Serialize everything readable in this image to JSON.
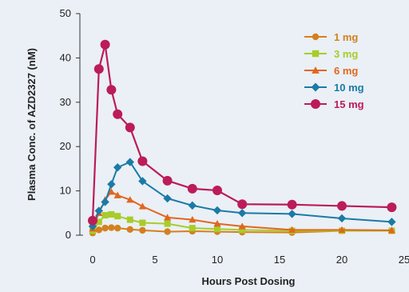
{
  "chart_data": {
    "type": "line",
    "title": "",
    "xlabel": "Hours Post Dosing",
    "ylabel": "Plasma Conc. of AZD2327 (nM)",
    "xlim": [
      0,
      25
    ],
    "ylim": [
      0,
      50
    ],
    "xticks": [
      0,
      5,
      10,
      15,
      20,
      25
    ],
    "yticks": [
      0,
      10,
      20,
      30,
      40,
      50
    ],
    "grid": false,
    "legend_position": "top-right",
    "series": [
      {
        "name": "1 mg",
        "color": "#d4801e",
        "marker": "circle",
        "x": [
          0,
          0.5,
          1,
          1.5,
          2,
          3,
          4,
          6,
          8,
          10,
          12,
          16,
          20,
          24
        ],
        "y": [
          0.5,
          1.2,
          1.6,
          1.7,
          1.6,
          1.3,
          1.1,
          0.8,
          0.9,
          0.8,
          0.7,
          0.6,
          1.0,
          1.0
        ]
      },
      {
        "name": "3 mg",
        "color": "#a8cc2a",
        "marker": "square",
        "x": [
          0,
          0.5,
          1,
          1.5,
          2,
          3,
          4,
          6,
          8,
          10,
          12,
          16,
          20,
          24
        ],
        "y": [
          1.0,
          3.0,
          4.5,
          4.7,
          4.3,
          3.5,
          2.8,
          2.6,
          1.6,
          1.4,
          1.2,
          1.0,
          1.0,
          1.0
        ]
      },
      {
        "name": "6 mg",
        "color": "#e2661e",
        "marker": "triangle",
        "x": [
          0,
          0.5,
          1,
          1.5,
          2,
          3,
          4,
          6,
          8,
          10,
          12,
          16,
          20,
          24
        ],
        "y": [
          1.5,
          5.0,
          8.0,
          9.8,
          9.0,
          8.0,
          6.5,
          4.0,
          3.5,
          2.6,
          2.0,
          1.2,
          1.2,
          1.1
        ]
      },
      {
        "name": "10 mg",
        "color": "#1b7aa6",
        "marker": "diamond",
        "x": [
          0,
          0.5,
          1,
          1.5,
          2,
          3,
          4,
          6,
          8,
          10,
          12,
          16,
          20,
          24
        ],
        "y": [
          2.0,
          5.5,
          7.5,
          11.5,
          15.3,
          16.5,
          12.2,
          8.3,
          6.7,
          5.6,
          5.0,
          4.8,
          3.8,
          3.0
        ]
      },
      {
        "name": "15 mg",
        "color": "#bc1c58",
        "marker": "circle",
        "x": [
          0,
          0.5,
          1,
          1.5,
          2,
          3,
          4,
          6,
          8,
          10,
          12,
          16,
          20,
          24
        ],
        "y": [
          3.3,
          37.5,
          43.0,
          32.8,
          27.3,
          24.3,
          16.7,
          12.3,
          10.5,
          10.1,
          7.0,
          6.9,
          6.6,
          6.3
        ]
      }
    ]
  }
}
